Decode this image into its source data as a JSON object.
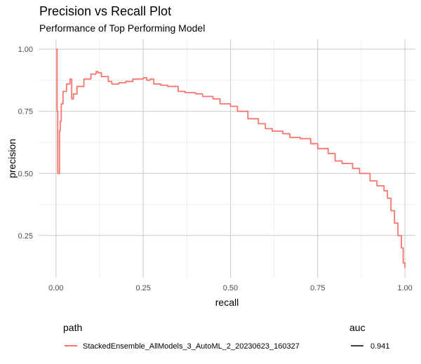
{
  "chart_data": {
    "type": "line",
    "title": "Precision vs Recall Plot",
    "subtitle": "Performance of Top Performing Model",
    "xlabel": "recall",
    "ylabel": "precision",
    "xlim": [
      -0.05,
      1.03
    ],
    "ylim": [
      0.08,
      1.04
    ],
    "x_ticks": [
      0.0,
      0.25,
      0.5,
      0.75,
      1.0
    ],
    "x_tick_labels": [
      "0.00",
      "0.25",
      "0.50",
      "0.75",
      "1.00"
    ],
    "y_ticks": [
      0.25,
      0.5,
      0.75,
      1.0
    ],
    "y_tick_labels": [
      "0.25",
      "0.50",
      "0.75",
      "1.00"
    ],
    "grid": true,
    "legend": {
      "position": "bottom",
      "path_title": "path",
      "auc_title": "auc",
      "path_label": "StackedEnsemble_AllModels_3_AutoML_2_20230623_160327",
      "auc_label": "0.941"
    },
    "series": [
      {
        "name": "StackedEnsemble_AllModels_3_AutoML_2_20230623_160327",
        "color": "#F8766D",
        "x": [
          0.0,
          0.001,
          0.003,
          0.005,
          0.008,
          0.01,
          0.012,
          0.015,
          0.02,
          0.03,
          0.04,
          0.045,
          0.05,
          0.06,
          0.08,
          0.1,
          0.115,
          0.12,
          0.13,
          0.15,
          0.16,
          0.18,
          0.2,
          0.22,
          0.25,
          0.26,
          0.27,
          0.28,
          0.3,
          0.32,
          0.35,
          0.37,
          0.4,
          0.42,
          0.45,
          0.47,
          0.5,
          0.52,
          0.55,
          0.58,
          0.6,
          0.62,
          0.65,
          0.67,
          0.7,
          0.73,
          0.75,
          0.78,
          0.8,
          0.82,
          0.85,
          0.87,
          0.9,
          0.92,
          0.94,
          0.95,
          0.96,
          0.97,
          0.98,
          0.99,
          0.995,
          1.0
        ],
        "y": [
          1.0,
          1.0,
          0.75,
          0.5,
          0.5,
          0.67,
          0.71,
          0.78,
          0.83,
          0.86,
          0.88,
          0.8,
          0.82,
          0.85,
          0.88,
          0.9,
          0.91,
          0.905,
          0.89,
          0.87,
          0.86,
          0.865,
          0.87,
          0.88,
          0.885,
          0.875,
          0.88,
          0.86,
          0.855,
          0.85,
          0.83,
          0.825,
          0.82,
          0.81,
          0.8,
          0.78,
          0.77,
          0.75,
          0.72,
          0.7,
          0.68,
          0.67,
          0.66,
          0.645,
          0.64,
          0.62,
          0.6,
          0.58,
          0.55,
          0.54,
          0.52,
          0.5,
          0.47,
          0.45,
          0.43,
          0.4,
          0.35,
          0.3,
          0.25,
          0.2,
          0.14,
          0.12
        ]
      }
    ]
  }
}
